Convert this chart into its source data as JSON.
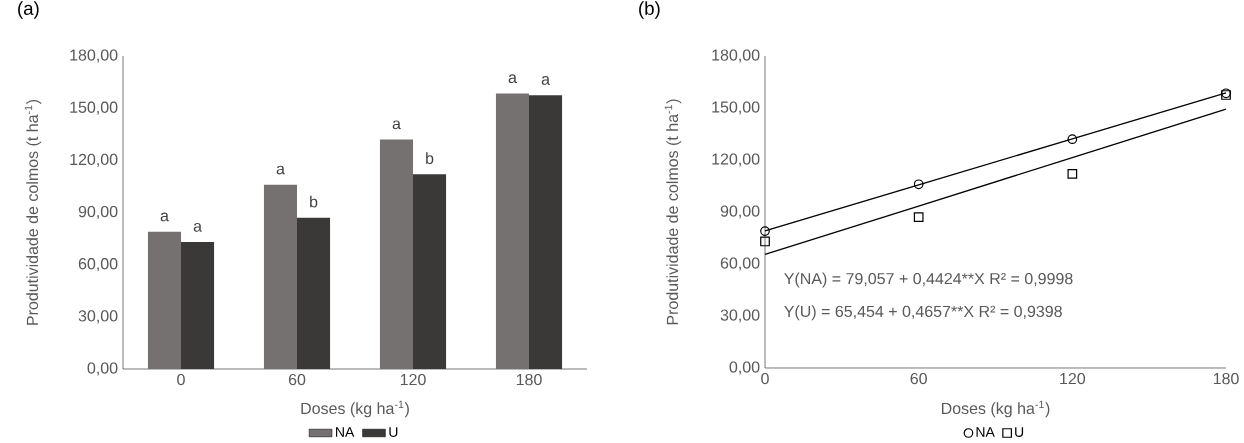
{
  "chart_data": [
    {
      "type": "bar",
      "title": "(a)",
      "xlabel": "Doses (kg ha$^{-1}$)",
      "ylabel": "Produtividade de colmos (t ha$^{-1}$)",
      "categories": [
        "0",
        "60",
        "120",
        "180"
      ],
      "series": [
        {
          "name": "NA",
          "color": "#767171",
          "values": [
            79,
            106,
            132,
            158.5
          ]
        },
        {
          "name": "U",
          "color": "#3b3838",
          "values": [
            73,
            87,
            112,
            157.5
          ]
        }
      ],
      "ylim": [
        0,
        180
      ],
      "yticks": [
        {
          "value": 0,
          "label": "0,00"
        },
        {
          "value": 30,
          "label": "30,00"
        },
        {
          "value": 60,
          "label": "60,00"
        },
        {
          "value": 90,
          "label": "90,00"
        },
        {
          "value": 120,
          "label": "120,00"
        },
        {
          "value": 150,
          "label": "150,00"
        },
        {
          "value": 180,
          "label": "180,00"
        }
      ],
      "annotations": [
        {
          "text": "a",
          "x": "0",
          "y": 79
        },
        {
          "text": "a",
          "x": "0",
          "y": 73
        },
        {
          "text": "a",
          "x": "60",
          "y": 106
        },
        {
          "text": "b",
          "x": "60",
          "y": 87
        },
        {
          "text": "a",
          "x": "120",
          "y": 132
        },
        {
          "text": "b",
          "x": "120",
          "y": 112
        },
        {
          "text": "a",
          "x": "180",
          "y": 158.5
        },
        {
          "text": "a",
          "x": "180",
          "y": 157.5
        }
      ],
      "legend": "bottom"
    },
    {
      "type": "scatter",
      "title": "(b)",
      "xlabel": "Doses (kg ha$^{-1}$)",
      "ylabel": "Produtividade de colmos (t ha$^{-1}$)",
      "x": [
        0,
        60,
        120,
        180
      ],
      "series": [
        {
          "name": "NA",
          "color": "#000000",
          "marker": "circle",
          "values": [
            79,
            106,
            132,
            158.5
          ]
        },
        {
          "name": "U",
          "color": "#000000",
          "marker": "square",
          "values": [
            73,
            87,
            112,
            157.5
          ]
        },
        {
          "type": "line",
          "color": "#000000",
          "values": [
            79.1,
            105.6,
            132.2,
            158.7
          ]
        },
        {
          "type": "line",
          "color": "#000000",
          "values": [
            65.5,
            93.4,
            121.4,
            149.3
          ]
        }
      ],
      "xlim": [
        0,
        180
      ],
      "xticks": [
        0,
        60,
        120,
        180
      ],
      "ylim": [
        0,
        180
      ],
      "yticks": [
        {
          "value": 0,
          "label": "0,00"
        },
        {
          "value": 30,
          "label": "30,00"
        },
        {
          "value": 60,
          "label": "60,00"
        },
        {
          "value": 90,
          "label": "90,00"
        },
        {
          "value": 120,
          "label": "120,00"
        },
        {
          "value": 150,
          "label": "150,00"
        },
        {
          "value": 180,
          "label": "180,00"
        }
      ],
      "annotations": [
        "Y(NA) = 79,057 + 0,4424**X R² = 0,9998",
        "Y(U) = 65,454 + 0,4657**X  R² = 0,9398"
      ],
      "legend": "bottom"
    }
  ]
}
